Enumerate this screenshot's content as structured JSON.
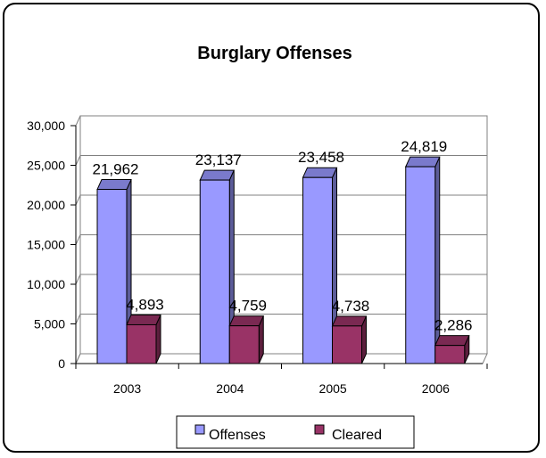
{
  "chart_data": {
    "type": "bar",
    "title": "Burglary Offenses",
    "xlabel": "",
    "ylabel": "",
    "categories": [
      "2003",
      "2004",
      "2005",
      "2006"
    ],
    "series": [
      {
        "name": "Offenses",
        "values": [
          21962,
          23137,
          23458,
          24819
        ],
        "labels": [
          "21,962",
          "23,137",
          "23,458",
          "24,819"
        ],
        "color": "#9999ff"
      },
      {
        "name": "Cleared",
        "values": [
          4893,
          4759,
          4738,
          2286
        ],
        "labels": [
          "4,893",
          "4,759",
          "4,738",
          "2,286"
        ],
        "color": "#993366"
      }
    ],
    "ylim": [
      0,
      30000
    ],
    "yticks": [
      0,
      5000,
      10000,
      15000,
      20000,
      25000,
      30000
    ],
    "ytick_labels": [
      "0",
      "5,000",
      "10,000",
      "15,000",
      "20,000",
      "25,000",
      "30,000"
    ],
    "grid": true,
    "legend": "bottom",
    "bar_style": "3d"
  }
}
